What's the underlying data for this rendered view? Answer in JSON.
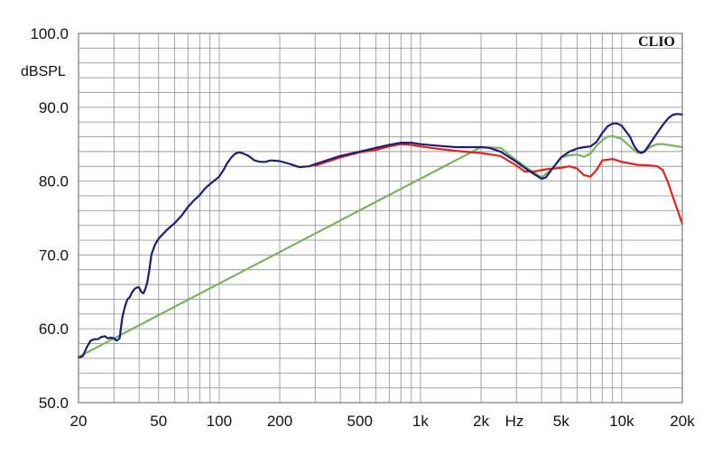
{
  "chart_data": {
    "type": "line",
    "brand": "CLIO",
    "ylabel": "dBSPL",
    "xunit": "Hz",
    "xscale": "log",
    "xlim": [
      20,
      20000
    ],
    "ylim": [
      50,
      100
    ],
    "grid": true,
    "xticks": [
      {
        "value": 20,
        "label": "20"
      },
      {
        "value": 50,
        "label": "50"
      },
      {
        "value": 100,
        "label": "100"
      },
      {
        "value": 200,
        "label": "200"
      },
      {
        "value": 500,
        "label": "500"
      },
      {
        "value": 1000,
        "label": "1k"
      },
      {
        "value": 2000,
        "label": "2k"
      },
      {
        "value": 5000,
        "label": "5k"
      },
      {
        "value": 10000,
        "label": "10k"
      },
      {
        "value": 20000,
        "label": "20k"
      }
    ],
    "yticks": [
      {
        "value": 100,
        "label": "100.0"
      },
      {
        "value": 90,
        "label": "90.0"
      },
      {
        "value": 80,
        "label": "80.0"
      },
      {
        "value": 70,
        "label": "70.0"
      },
      {
        "value": 60,
        "label": "60.0"
      },
      {
        "value": 50,
        "label": "50.0"
      }
    ],
    "series": [
      {
        "color": "#78b45a",
        "points": [
          [
            20,
            56.2
          ],
          [
            2000,
            84.6
          ],
          [
            2500,
            84.5
          ],
          [
            3000,
            82.8
          ],
          [
            3500,
            81.5
          ],
          [
            4000,
            80.5
          ],
          [
            4500,
            81.6
          ],
          [
            5000,
            83.2
          ],
          [
            5500,
            83.5
          ],
          [
            6000,
            83.6
          ],
          [
            6500,
            83.3
          ],
          [
            7000,
            83.7
          ],
          [
            7500,
            84.8
          ],
          [
            8000,
            85.5
          ],
          [
            8500,
            86.0
          ],
          [
            9000,
            86.1
          ],
          [
            10000,
            85.7
          ],
          [
            11000,
            84.7
          ],
          [
            12000,
            83.8
          ],
          [
            13000,
            84.1
          ],
          [
            14000,
            84.7
          ],
          [
            15000,
            85.0
          ],
          [
            16000,
            85.0
          ],
          [
            17000,
            84.9
          ],
          [
            18000,
            84.8
          ],
          [
            19000,
            84.7
          ],
          [
            20000,
            84.6
          ]
        ]
      },
      {
        "color": "#e0251e",
        "points": [
          [
            300,
            82.1
          ],
          [
            400,
            83.2
          ],
          [
            500,
            83.9
          ],
          [
            600,
            84.2
          ],
          [
            700,
            84.7
          ],
          [
            800,
            85.0
          ],
          [
            900,
            84.9
          ],
          [
            1000,
            84.7
          ],
          [
            1200,
            84.4
          ],
          [
            1500,
            84.1
          ],
          [
            2000,
            83.8
          ],
          [
            2500,
            83.4
          ],
          [
            3000,
            82.1
          ],
          [
            3300,
            81.3
          ],
          [
            3700,
            81.3
          ],
          [
            4200,
            81.6
          ],
          [
            5000,
            81.8
          ],
          [
            5500,
            82.0
          ],
          [
            6000,
            81.7
          ],
          [
            6500,
            80.8
          ],
          [
            7000,
            80.6
          ],
          [
            7500,
            81.5
          ],
          [
            8000,
            82.8
          ],
          [
            9000,
            83.0
          ],
          [
            10000,
            82.6
          ],
          [
            11000,
            82.4
          ],
          [
            12000,
            82.2
          ],
          [
            14000,
            82.1
          ],
          [
            15000,
            82.0
          ],
          [
            16000,
            81.5
          ],
          [
            17000,
            79.8
          ],
          [
            18000,
            77.8
          ],
          [
            19000,
            76.0
          ],
          [
            20000,
            74.2
          ]
        ]
      },
      {
        "color": "#1c1c7a",
        "points": [
          [
            20,
            56.1
          ],
          [
            21,
            56.3
          ],
          [
            22,
            57.5
          ],
          [
            23,
            58.4
          ],
          [
            24,
            58.6
          ],
          [
            25,
            58.6
          ],
          [
            26,
            58.9
          ],
          [
            27,
            59.0
          ],
          [
            28,
            58.7
          ],
          [
            29,
            58.8
          ],
          [
            30,
            58.7
          ],
          [
            31,
            58.4
          ],
          [
            32,
            58.7
          ],
          [
            33,
            61.5
          ],
          [
            34,
            63.0
          ],
          [
            35,
            64.0
          ],
          [
            36,
            64.3
          ],
          [
            37,
            65.0
          ],
          [
            38,
            65.4
          ],
          [
            39,
            65.6
          ],
          [
            40,
            65.6
          ],
          [
            41,
            65.0
          ],
          [
            42,
            64.8
          ],
          [
            43,
            65.4
          ],
          [
            44,
            66.4
          ],
          [
            45,
            68.0
          ],
          [
            46,
            70.0
          ],
          [
            48,
            71.4
          ],
          [
            50,
            72.2
          ],
          [
            55,
            73.4
          ],
          [
            60,
            74.3
          ],
          [
            65,
            75.3
          ],
          [
            70,
            76.5
          ],
          [
            75,
            77.4
          ],
          [
            80,
            78.1
          ],
          [
            85,
            79.0
          ],
          [
            90,
            79.6
          ],
          [
            100,
            80.6
          ],
          [
            105,
            81.5
          ],
          [
            110,
            82.5
          ],
          [
            115,
            83.2
          ],
          [
            120,
            83.7
          ],
          [
            125,
            83.9
          ],
          [
            130,
            83.8
          ],
          [
            140,
            83.4
          ],
          [
            150,
            82.8
          ],
          [
            160,
            82.6
          ],
          [
            170,
            82.6
          ],
          [
            180,
            82.8
          ],
          [
            200,
            82.7
          ],
          [
            220,
            82.4
          ],
          [
            250,
            81.9
          ],
          [
            280,
            82.0
          ],
          [
            300,
            82.3
          ],
          [
            350,
            82.9
          ],
          [
            400,
            83.4
          ],
          [
            500,
            84.0
          ],
          [
            600,
            84.5
          ],
          [
            700,
            84.9
          ],
          [
            800,
            85.2
          ],
          [
            900,
            85.2
          ],
          [
            1000,
            85.0
          ],
          [
            1200,
            84.8
          ],
          [
            1500,
            84.6
          ],
          [
            2000,
            84.6
          ],
          [
            2200,
            84.5
          ],
          [
            2500,
            84.0
          ],
          [
            3000,
            82.6
          ],
          [
            3500,
            81.3
          ],
          [
            4000,
            80.3
          ],
          [
            4200,
            80.5
          ],
          [
            4500,
            81.6
          ],
          [
            5000,
            83.2
          ],
          [
            5500,
            84.0
          ],
          [
            6000,
            84.4
          ],
          [
            6500,
            84.6
          ],
          [
            7000,
            84.7
          ],
          [
            7500,
            85.3
          ],
          [
            8000,
            86.5
          ],
          [
            8500,
            87.4
          ],
          [
            9000,
            87.8
          ],
          [
            9500,
            87.8
          ],
          [
            10000,
            87.5
          ],
          [
            11000,
            86.0
          ],
          [
            11500,
            84.8
          ],
          [
            12000,
            84.1
          ],
          [
            12500,
            83.8
          ],
          [
            13000,
            84.0
          ],
          [
            14000,
            85.3
          ],
          [
            15000,
            86.5
          ],
          [
            16000,
            87.6
          ],
          [
            17000,
            88.5
          ],
          [
            18000,
            89.0
          ],
          [
            19000,
            89.1
          ],
          [
            20000,
            89.0
          ]
        ]
      }
    ]
  }
}
